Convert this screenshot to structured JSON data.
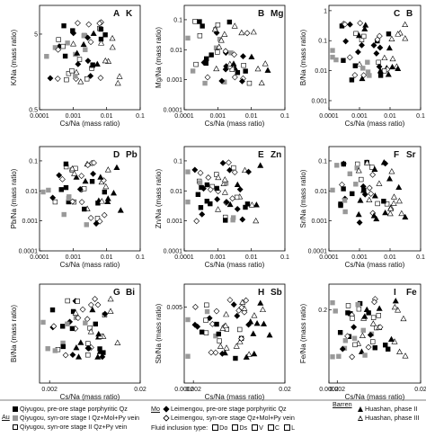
{
  "chart_data": [
    {
      "type": "scatter",
      "panel_letter": "A",
      "element": "K",
      "xlabel": "Cs/Na (mass ratio)",
      "ylabel": "K/Na (mass ratio)",
      "xscale": "log",
      "yscale": "log",
      "xlim": [
        0.0001,
        0.1
      ],
      "ylim": [
        0.5,
        12
      ],
      "xticks": [
        0.0001,
        0.001,
        0.01,
        0.1
      ],
      "xtick_labels": [
        "0.0001",
        "0.001",
        "0.01",
        "0.1"
      ],
      "yticks": [
        0.5,
        5
      ],
      "ytick_labels": [
        "0.5",
        "5"
      ]
    },
    {
      "type": "scatter",
      "panel_letter": "B",
      "element": "Mg",
      "xlabel": "Cs/Na (mass ratio)",
      "ylabel": "Mg/Na (mass ratio)",
      "xscale": "log",
      "yscale": "log",
      "xlim": [
        0.0001,
        0.1
      ],
      "ylim": [
        0.0001,
        0.3
      ],
      "xticks": [
        0.0001,
        0.001,
        0.01,
        0.1
      ],
      "xtick_labels": [
        "0.0001",
        "0.001",
        "0.01",
        "0.1"
      ],
      "yticks": [
        0.0001,
        0.001,
        0.01,
        0.1
      ],
      "ytick_labels": [
        "0.0001",
        "0.001",
        "0.01",
        "0.1"
      ]
    },
    {
      "type": "scatter",
      "panel_letter": "C",
      "element": "B",
      "xlabel": "Cs/Na (mass ratio)",
      "ylabel": "B/Na (mass ratio)",
      "xscale": "log",
      "yscale": "log",
      "xlim": [
        0.0001,
        0.1
      ],
      "ylim": [
        0.0005,
        1.5
      ],
      "xticks": [
        0.0001,
        0.001,
        0.01,
        0.1
      ],
      "xtick_labels": [
        "0.0001",
        "0.001",
        "0.01",
        "0.1"
      ],
      "yticks": [
        0.001,
        0.01,
        0.1,
        1
      ],
      "ytick_labels": [
        "0.001",
        "0.01",
        "0.1",
        "1"
      ]
    },
    {
      "type": "scatter",
      "panel_letter": "D",
      "element": "Pb",
      "xlabel": "Cs/Na (mass ratio)",
      "ylabel": "Pb/Na (mass ratio)",
      "xscale": "log",
      "yscale": "log",
      "xlim": [
        0.0001,
        0.1
      ],
      "ylim": [
        0.0001,
        0.3
      ],
      "xticks": [
        0.0001,
        0.001,
        0.01,
        0.1
      ],
      "xtick_labels": [
        "0.0001",
        "0.001",
        "0.01",
        "0.1"
      ],
      "yticks": [
        0.0001,
        0.001,
        0.01,
        0.1
      ],
      "ytick_labels": [
        "0.0001",
        "0.001",
        "0.01",
        "0.1"
      ]
    },
    {
      "type": "scatter",
      "panel_letter": "E",
      "element": "Zn",
      "xlabel": "Cs/Na (mass ratio)",
      "ylabel": "Zn/Na (mass ratio)",
      "xscale": "log",
      "yscale": "log",
      "xlim": [
        0.0001,
        0.1
      ],
      "ylim": [
        0.0001,
        0.3
      ],
      "xticks": [
        0.0001,
        0.001,
        0.01,
        0.1
      ],
      "xtick_labels": [
        "0.0001",
        "0.001",
        "0.01",
        "0.1"
      ],
      "yticks": [
        0.0001,
        0.001,
        0.01,
        0.1
      ],
      "ytick_labels": [
        "0.0001",
        "0.001",
        "0.01",
        "0.1"
      ]
    },
    {
      "type": "scatter",
      "panel_letter": "F",
      "element": "Sr",
      "xlabel": "Cs/Na (mass ratio)",
      "ylabel": "Sr/Na (mass ratio)",
      "xscale": "log",
      "yscale": "log",
      "xlim": [
        0.0001,
        0.1
      ],
      "ylim": [
        0.0001,
        0.3
      ],
      "xticks": [
        0.0001,
        0.001,
        0.01,
        0.1
      ],
      "xtick_labels": [
        "0.0001",
        "0.001",
        "0.01",
        "0.1"
      ],
      "yticks": [
        0.0001,
        0.001,
        0.01,
        0.1
      ],
      "ytick_labels": [
        "0.0001",
        "0.001",
        "0.01",
        "0.1"
      ]
    },
    {
      "type": "scatter",
      "panel_letter": "G",
      "element": "Bi",
      "xlabel": "Cs/Na (mass ratio)",
      "ylabel": "Bi/Na (mass ratio)",
      "xscale": "linear",
      "yscale": "linear",
      "xlim": [
        0,
        0.02
      ],
      "ylim": [
        0,
        0.0022
      ],
      "xticks": [
        0.002,
        0.02
      ],
      "xtick_labels": [
        "0.002",
        "0.02"
      ],
      "yticks": [],
      "ytick_labels": []
    },
    {
      "type": "scatter",
      "panel_letter": "H",
      "element": "Sb",
      "xlabel": "Cs/Na (mass ratio)",
      "ylabel": "Sb/Na (mass ratio)",
      "xscale": "linear",
      "yscale": "linear",
      "xlim": [
        0.0002,
        0.02
      ],
      "ylim": [
        0,
        0.0065
      ],
      "xticks": [
        0.0002,
        0.002,
        0.02
      ],
      "xtick_labels": [
        "0.0002",
        "0.002",
        "0.02"
      ],
      "yticks": [
        0.005
      ],
      "ytick_labels": [
        "0.005"
      ]
    },
    {
      "type": "scatter",
      "panel_letter": "I",
      "element": "Fe",
      "xlabel": "Cs/Na (mass ratio)",
      "ylabel": "Fe/Na (mass ratio)",
      "xscale": "linear",
      "yscale": "linear",
      "xlim": [
        0.0002,
        0.02
      ],
      "ylim": [
        0.03,
        0.26
      ],
      "xticks": [
        0.0002,
        0.002,
        0.02
      ],
      "xtick_labels": [
        "0.0002",
        "0.002",
        "0.02"
      ],
      "yticks": [
        0.2
      ],
      "ytick_labels": [
        "0.2"
      ]
    }
  ],
  "legend": {
    "groups": [
      "Au",
      "Mo",
      "Barren"
    ],
    "au_items": [
      "Qiyugou, pre-ore stage porphyritic Qz",
      "Qiyugou, syn-ore stage I Qz+Mol+Py vein",
      "Qiyugou, syn-ore stage II Qz+Py vein"
    ],
    "mo_items": [
      "Leimengou, pre-ore stage porphyritic Qz",
      "Leimengou, syn-ore stage Qz+Mol+Py vein"
    ],
    "barren_items": [
      "Huashan, phase II",
      "Huashan, phase III"
    ],
    "fluid_inclusion_label": "Fluid inclusion type:",
    "fluid_inclusion_types": [
      "Do",
      "Ds",
      "V",
      "C",
      "L"
    ]
  },
  "colors": {
    "primary": "#000000",
    "gray": "#999999"
  }
}
